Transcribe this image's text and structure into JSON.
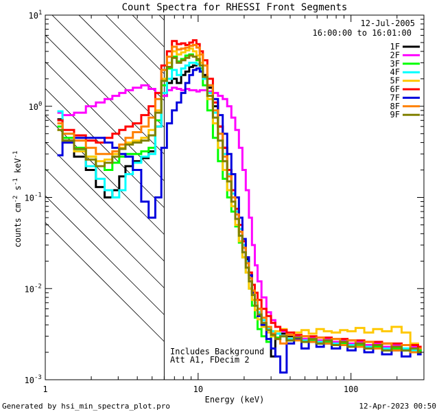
{
  "chart_data": {
    "type": "line",
    "title": "Count Spectra for RHESSI Front Segments",
    "xlabel": "Energy (keV)",
    "ylabel": "counts cm^-2 s^-1 keV^-1",
    "x_scale": "log",
    "y_scale": "log",
    "xlim": [
      1,
      300
    ],
    "ylim": [
      0.001,
      10
    ],
    "x_ticks": [
      {
        "value": 1,
        "label": "1"
      },
      {
        "value": 10,
        "label": "10"
      },
      {
        "value": 100,
        "label": "100"
      }
    ],
    "y_ticks": [
      {
        "value": 0.001,
        "base": "10",
        "exp": "-3"
      },
      {
        "value": 0.01,
        "base": "10",
        "exp": "-2"
      },
      {
        "value": 0.1,
        "base": "10",
        "exp": "-1"
      },
      {
        "value": 1,
        "base": "10",
        "exp": "0"
      },
      {
        "value": 10,
        "base": "10",
        "exp": "1"
      }
    ],
    "date": "12-Jul-2005",
    "time_range": "16:00:00 to 16:01:00",
    "hatched_below_keV": 6,
    "annotations": [
      "Includes Background",
      "Att A1, FDecim 2"
    ],
    "series": [
      {
        "name": "1F",
        "color": "#000000",
        "x": [
          1.2,
          1.4,
          1.7,
          2.0,
          2.3,
          2.6,
          2.9,
          3.2,
          3.5,
          4.0,
          4.5,
          5.0,
          5.5,
          6.0,
          6.5,
          7.0,
          7.5,
          8.0,
          8.5,
          9.0,
          9.5,
          10.0,
          10.5,
          11.0,
          12.0,
          13.0,
          14.0,
          15.0,
          16.0,
          17.0,
          18.0,
          19.0,
          20.0,
          21.0,
          22.0,
          23.0,
          24.0,
          25.0,
          27.0,
          29.0,
          31.0,
          33.0,
          36.0,
          40.0,
          45.0,
          50.0,
          56.0,
          63.0,
          70.0,
          80.0,
          90.0,
          100.0,
          115.0,
          130.0,
          150.0,
          170.0,
          200.0,
          230.0,
          260.0,
          290.0
        ],
        "y": [
          0.72,
          0.42,
          0.28,
          0.2,
          0.13,
          0.1,
          0.12,
          0.17,
          0.22,
          0.25,
          0.27,
          0.32,
          0.6,
          1.3,
          1.8,
          2.0,
          1.8,
          2.2,
          2.4,
          2.7,
          2.8,
          2.9,
          2.6,
          2.2,
          1.6,
          1.0,
          0.6,
          0.35,
          0.2,
          0.12,
          0.07,
          0.045,
          0.03,
          0.021,
          0.014,
          0.0095,
          0.0075,
          0.006,
          0.0045,
          0.0038,
          0.0018,
          0.0028,
          0.0032,
          0.003,
          0.0028,
          0.0026,
          0.0027,
          0.0025,
          0.0026,
          0.0024,
          0.0025,
          0.0023,
          0.0024,
          0.0022,
          0.0023,
          0.0021,
          0.0022,
          0.0021,
          0.002,
          0.0021
        ]
      },
      {
        "name": "2F",
        "color": "#ff00ff",
        "x": [
          1.2,
          1.4,
          1.7,
          2.0,
          2.3,
          2.6,
          2.9,
          3.2,
          3.5,
          4.0,
          4.5,
          5.0,
          5.5,
          6.0,
          6.5,
          7.0,
          7.5,
          8.0,
          8.5,
          9.0,
          9.5,
          10.0,
          10.5,
          11.0,
          12.0,
          13.0,
          14.0,
          15.0,
          16.0,
          17.0,
          18.0,
          19.0,
          20.0,
          21.0,
          22.0,
          23.0,
          24.0,
          25.0,
          27.0,
          29.0,
          31.0,
          33.0,
          36.0,
          40.0,
          45.0,
          50.0,
          56.0,
          63.0,
          70.0,
          80.0,
          90.0,
          100.0,
          115.0,
          130.0,
          150.0,
          170.0,
          200.0,
          230.0,
          260.0,
          290.0
        ],
        "y": [
          0.85,
          0.8,
          0.85,
          1.0,
          1.1,
          1.2,
          1.3,
          1.4,
          1.5,
          1.6,
          1.7,
          1.55,
          1.4,
          1.3,
          1.5,
          1.6,
          1.55,
          1.5,
          1.55,
          1.5,
          1.5,
          1.45,
          1.5,
          1.5,
          1.45,
          1.4,
          1.3,
          1.2,
          1.0,
          0.75,
          0.55,
          0.35,
          0.2,
          0.12,
          0.06,
          0.03,
          0.018,
          0.012,
          0.008,
          0.0055,
          0.0045,
          0.0038,
          0.0034,
          0.0031,
          0.003,
          0.0028,
          0.0029,
          0.0027,
          0.0028,
          0.0026,
          0.0027,
          0.0025,
          0.0026,
          0.0024,
          0.0025,
          0.0023,
          0.0024,
          0.0022,
          0.0023,
          0.0022
        ]
      },
      {
        "name": "3F",
        "color": "#00ff00",
        "x": [
          1.2,
          1.4,
          1.7,
          2.0,
          2.3,
          2.6,
          2.9,
          3.2,
          3.5,
          4.0,
          4.5,
          5.0,
          5.5,
          6.0,
          6.5,
          7.0,
          7.5,
          8.0,
          8.5,
          9.0,
          9.5,
          10.0,
          10.5,
          11.0,
          12.0,
          13.0,
          14.0,
          15.0,
          16.0,
          17.0,
          18.0,
          19.0,
          20.0,
          21.0,
          22.0,
          23.0,
          24.0,
          25.0,
          27.0,
          29.0,
          31.0,
          33.0,
          36.0,
          40.0,
          45.0,
          50.0,
          56.0,
          63.0,
          70.0,
          80.0,
          90.0,
          100.0,
          115.0,
          130.0,
          150.0,
          170.0,
          200.0,
          230.0,
          260.0,
          290.0
        ],
        "y": [
          0.6,
          0.45,
          0.35,
          0.28,
          0.22,
          0.2,
          0.24,
          0.28,
          0.3,
          0.3,
          0.32,
          0.35,
          0.7,
          1.7,
          2.6,
          3.5,
          3.1,
          3.3,
          3.6,
          3.7,
          3.5,
          3.2,
          2.6,
          1.7,
          0.9,
          0.45,
          0.25,
          0.16,
          0.1,
          0.07,
          0.048,
          0.032,
          0.022,
          0.015,
          0.01,
          0.0065,
          0.0048,
          0.0036,
          0.003,
          0.0026,
          0.0032,
          0.0029,
          0.003,
          0.0027,
          0.0028,
          0.0026,
          0.0027,
          0.0025,
          0.0026,
          0.0024,
          0.0025,
          0.0023,
          0.0024,
          0.0022,
          0.0023,
          0.0021,
          0.0022,
          0.0021,
          0.002,
          0.0021
        ]
      },
      {
        "name": "4F",
        "color": "#00ffff",
        "x": [
          1.2,
          1.4,
          1.7,
          2.0,
          2.3,
          2.6,
          2.9,
          3.2,
          3.5,
          4.0,
          4.5,
          5.0,
          5.5,
          6.0,
          6.5,
          7.0,
          7.5,
          8.0,
          8.5,
          9.0,
          9.5,
          10.0,
          10.5,
          11.0,
          12.0,
          13.0,
          14.0,
          15.0,
          16.0,
          17.0,
          18.0,
          19.0,
          20.0,
          21.0,
          22.0,
          23.0,
          24.0,
          25.0,
          27.0,
          29.0,
          31.0,
          33.0,
          36.0,
          40.0,
          45.0,
          50.0,
          56.0,
          63.0,
          70.0,
          80.0,
          90.0,
          100.0,
          115.0,
          130.0,
          150.0,
          170.0,
          200.0,
          230.0,
          260.0,
          290.0
        ],
        "y": [
          0.88,
          0.5,
          0.33,
          0.22,
          0.16,
          0.12,
          0.1,
          0.12,
          0.18,
          0.24,
          0.28,
          0.3,
          0.6,
          1.4,
          2.0,
          2.5,
          2.2,
          2.6,
          2.8,
          3.0,
          3.0,
          2.9,
          2.5,
          2.0,
          1.4,
          0.85,
          0.5,
          0.3,
          0.18,
          0.11,
          0.07,
          0.045,
          0.03,
          0.02,
          0.013,
          0.009,
          0.007,
          0.0055,
          0.0045,
          0.0037,
          0.0034,
          0.0032,
          0.003,
          0.0028,
          0.0029,
          0.0027,
          0.0028,
          0.0026,
          0.0027,
          0.0025,
          0.0026,
          0.0024,
          0.0025,
          0.0023,
          0.0024,
          0.0022,
          0.0023,
          0.0022,
          0.0021,
          0.0022
        ]
      },
      {
        "name": "5F",
        "color": "#ffc800",
        "x": [
          1.2,
          1.4,
          1.7,
          2.0,
          2.3,
          2.6,
          2.9,
          3.2,
          3.5,
          4.0,
          4.5,
          5.0,
          5.5,
          6.0,
          6.5,
          7.0,
          7.5,
          8.0,
          8.5,
          9.0,
          9.5,
          10.0,
          10.5,
          11.0,
          12.0,
          13.0,
          14.0,
          15.0,
          16.0,
          17.0,
          18.0,
          19.0,
          20.0,
          21.0,
          22.0,
          23.0,
          24.0,
          25.0,
          27.0,
          29.0,
          31.0,
          33.0,
          36.0,
          40.0,
          45.0,
          50.0,
          56.0,
          63.0,
          70.0,
          80.0,
          90.0,
          100.0,
          115.0,
          130.0,
          150.0,
          170.0,
          200.0,
          230.0,
          260.0,
          290.0
        ],
        "y": [
          0.55,
          0.4,
          0.32,
          0.28,
          0.25,
          0.26,
          0.3,
          0.35,
          0.4,
          0.42,
          0.45,
          0.55,
          0.9,
          2.0,
          3.0,
          4.0,
          3.7,
          3.9,
          4.1,
          4.3,
          4.0,
          3.6,
          3.0,
          2.1,
          1.2,
          0.65,
          0.35,
          0.2,
          0.12,
          0.08,
          0.05,
          0.033,
          0.022,
          0.015,
          0.01,
          0.0075,
          0.0058,
          0.0046,
          0.0038,
          0.0033,
          0.003,
          0.0034,
          0.0036,
          0.0031,
          0.0033,
          0.0035,
          0.0032,
          0.0036,
          0.0034,
          0.0033,
          0.0035,
          0.0034,
          0.0037,
          0.0033,
          0.0036,
          0.0034,
          0.0038,
          0.0033,
          0.0025,
          0.0022
        ]
      },
      {
        "name": "6F",
        "color": "#ff0000",
        "x": [
          1.2,
          1.4,
          1.7,
          2.0,
          2.3,
          2.6,
          2.9,
          3.2,
          3.5,
          4.0,
          4.5,
          5.0,
          5.5,
          6.0,
          6.5,
          7.0,
          7.5,
          8.0,
          8.5,
          9.0,
          9.5,
          10.0,
          10.5,
          11.0,
          12.0,
          13.0,
          14.0,
          15.0,
          16.0,
          17.0,
          18.0,
          19.0,
          20.0,
          21.0,
          22.0,
          23.0,
          24.0,
          25.0,
          27.0,
          29.0,
          31.0,
          33.0,
          36.0,
          40.0,
          45.0,
          50.0,
          56.0,
          63.0,
          70.0,
          80.0,
          90.0,
          100.0,
          115.0,
          130.0,
          150.0,
          170.0,
          200.0,
          230.0,
          260.0,
          290.0
        ],
        "y": [
          0.7,
          0.55,
          0.48,
          0.42,
          0.4,
          0.45,
          0.5,
          0.55,
          0.6,
          0.65,
          0.8,
          1.0,
          1.4,
          2.8,
          4.0,
          5.2,
          4.8,
          4.9,
          4.7,
          5.0,
          5.3,
          4.8,
          4.0,
          3.2,
          2.0,
          1.1,
          0.6,
          0.35,
          0.2,
          0.12,
          0.075,
          0.05,
          0.033,
          0.022,
          0.015,
          0.011,
          0.009,
          0.0075,
          0.006,
          0.005,
          0.0042,
          0.0038,
          0.0035,
          0.0033,
          0.0031,
          0.003,
          0.003,
          0.0029,
          0.0029,
          0.0028,
          0.0028,
          0.0027,
          0.0027,
          0.0026,
          0.0026,
          0.0025,
          0.0025,
          0.0024,
          0.0024,
          0.0023
        ]
      },
      {
        "name": "7F",
        "color": "#0000dd",
        "x": [
          1.2,
          1.4,
          1.7,
          2.0,
          2.3,
          2.6,
          2.9,
          3.2,
          3.5,
          4.0,
          4.5,
          5.0,
          5.5,
          6.0,
          6.5,
          7.0,
          7.5,
          8.0,
          8.5,
          9.0,
          9.5,
          10.0,
          10.5,
          11.0,
          12.0,
          13.0,
          14.0,
          15.0,
          16.0,
          17.0,
          18.0,
          19.0,
          20.0,
          21.0,
          22.0,
          23.0,
          24.0,
          25.0,
          27.0,
          29.0,
          31.0,
          33.0,
          36.0,
          40.0,
          45.0,
          50.0,
          56.0,
          63.0,
          70.0,
          80.0,
          90.0,
          100.0,
          115.0,
          130.0,
          150.0,
          170.0,
          200.0,
          230.0,
          260.0,
          290.0
        ],
        "y": [
          0.29,
          0.4,
          0.45,
          0.45,
          0.45,
          0.4,
          0.35,
          0.3,
          0.28,
          0.2,
          0.09,
          0.06,
          0.1,
          0.35,
          0.65,
          0.9,
          1.1,
          1.4,
          1.8,
          2.2,
          2.5,
          2.6,
          2.4,
          2.1,
          1.7,
          1.2,
          0.8,
          0.5,
          0.3,
          0.18,
          0.1,
          0.06,
          0.035,
          0.022,
          0.014,
          0.009,
          0.0065,
          0.005,
          0.004,
          0.0028,
          0.0022,
          0.0018,
          0.0012,
          0.0025,
          0.0028,
          0.0022,
          0.0026,
          0.0023,
          0.0025,
          0.0022,
          0.0024,
          0.0021,
          0.0023,
          0.002,
          0.0022,
          0.0019,
          0.0021,
          0.0018,
          0.002,
          0.0019
        ]
      },
      {
        "name": "8F",
        "color": "#ff8000",
        "x": [
          1.2,
          1.4,
          1.7,
          2.0,
          2.3,
          2.6,
          2.9,
          3.2,
          3.5,
          4.0,
          4.5,
          5.0,
          5.5,
          6.0,
          6.5,
          7.0,
          7.5,
          8.0,
          8.5,
          9.0,
          9.5,
          10.0,
          10.5,
          11.0,
          12.0,
          13.0,
          14.0,
          15.0,
          16.0,
          17.0,
          18.0,
          19.0,
          20.0,
          21.0,
          22.0,
          23.0,
          24.0,
          25.0,
          27.0,
          29.0,
          31.0,
          33.0,
          36.0,
          40.0,
          45.0,
          50.0,
          56.0,
          63.0,
          70.0,
          80.0,
          90.0,
          100.0,
          115.0,
          130.0,
          150.0,
          170.0,
          200.0,
          230.0,
          260.0,
          290.0
        ],
        "y": [
          0.65,
          0.5,
          0.42,
          0.35,
          0.3,
          0.3,
          0.32,
          0.38,
          0.45,
          0.52,
          0.6,
          0.75,
          1.2,
          2.5,
          3.5,
          4.5,
          4.2,
          4.3,
          4.4,
          4.6,
          4.7,
          4.4,
          3.7,
          2.8,
          1.7,
          0.9,
          0.5,
          0.28,
          0.17,
          0.1,
          0.065,
          0.042,
          0.028,
          0.019,
          0.013,
          0.0095,
          0.0075,
          0.006,
          0.0048,
          0.0038,
          0.0032,
          0.0028,
          0.0025,
          0.0031,
          0.0027,
          0.003,
          0.0026,
          0.0029,
          0.0025,
          0.0028,
          0.0024,
          0.0027,
          0.0023,
          0.0026,
          0.0022,
          0.0025,
          0.0021,
          0.0024,
          0.002,
          0.0022
        ]
      },
      {
        "name": "9F",
        "color": "#808000",
        "x": [
          1.2,
          1.4,
          1.7,
          2.0,
          2.3,
          2.6,
          2.9,
          3.2,
          3.5,
          4.0,
          4.5,
          5.0,
          5.5,
          6.0,
          6.5,
          7.0,
          7.5,
          8.0,
          8.5,
          9.0,
          9.5,
          10.0,
          10.5,
          11.0,
          12.0,
          13.0,
          14.0,
          15.0,
          16.0,
          17.0,
          18.0,
          19.0,
          20.0,
          21.0,
          22.0,
          23.0,
          24.0,
          25.0,
          27.0,
          29.0,
          31.0,
          33.0,
          36.0,
          40.0,
          45.0,
          50.0,
          56.0,
          63.0,
          70.0,
          80.0,
          90.0,
          100.0,
          115.0,
          130.0,
          150.0,
          170.0,
          200.0,
          230.0,
          260.0,
          290.0
        ],
        "y": [
          0.55,
          0.42,
          0.34,
          0.26,
          0.22,
          0.24,
          0.28,
          0.34,
          0.38,
          0.4,
          0.42,
          0.48,
          0.85,
          1.9,
          2.7,
          3.4,
          3.0,
          3.2,
          3.4,
          3.6,
          3.5,
          3.3,
          2.8,
          2.1,
          1.3,
          0.75,
          0.42,
          0.25,
          0.15,
          0.09,
          0.058,
          0.038,
          0.025,
          0.017,
          0.012,
          0.0085,
          0.0065,
          0.0052,
          0.0042,
          0.0035,
          0.0031,
          0.0028,
          0.003,
          0.0027,
          0.0029,
          0.0026,
          0.0028,
          0.0025,
          0.0027,
          0.0024,
          0.0026,
          0.0023,
          0.0025,
          0.0022,
          0.0024,
          0.0021,
          0.0023,
          0.0021,
          0.0022,
          0.002
        ]
      }
    ]
  },
  "footer": {
    "generated_by": "Generated by hsi_min_spectra_plot.pro",
    "timestamp": "12-Apr-2023 00:50"
  }
}
